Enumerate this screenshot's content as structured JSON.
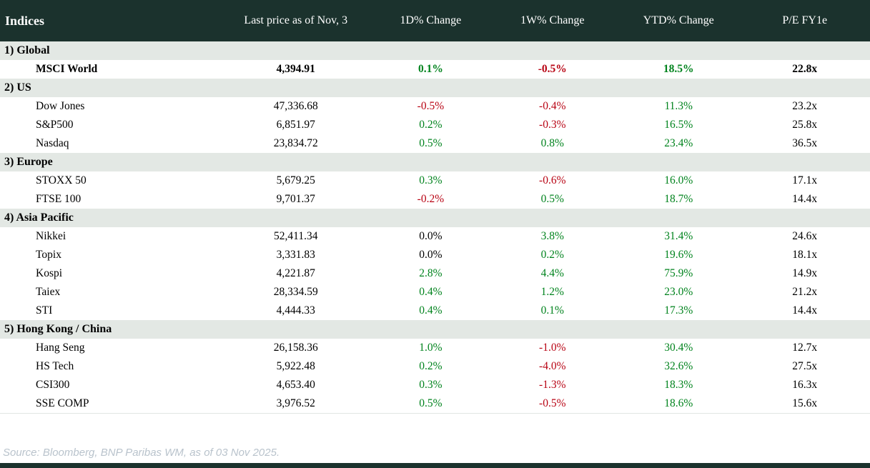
{
  "chart_data": {
    "type": "table",
    "title": "Indices",
    "columns": [
      "Last price as of Nov, 3",
      "1D% Change",
      "1W% Change",
      "YTD% Change",
      "P/E FY1e"
    ],
    "sections": [
      {
        "label": "1) Global",
        "rows": [
          {
            "name": "MSCI World",
            "last_price": "4,394.91",
            "chg_1d": "0.1%",
            "chg_1w": "-0.5%",
            "chg_ytd": "18.5%",
            "pe_fy1e": "22.8x",
            "emphasis": true
          }
        ]
      },
      {
        "label": "2) US",
        "rows": [
          {
            "name": "Dow Jones",
            "last_price": "47,336.68",
            "chg_1d": "-0.5%",
            "chg_1w": "-0.4%",
            "chg_ytd": "11.3%",
            "pe_fy1e": "23.2x",
            "emphasis": false
          },
          {
            "name": "S&P500",
            "last_price": "6,851.97",
            "chg_1d": "0.2%",
            "chg_1w": "-0.3%",
            "chg_ytd": "16.5%",
            "pe_fy1e": "25.8x",
            "emphasis": false
          },
          {
            "name": "Nasdaq",
            "last_price": "23,834.72",
            "chg_1d": "0.5%",
            "chg_1w": "0.8%",
            "chg_ytd": "23.4%",
            "pe_fy1e": "36.5x",
            "emphasis": false
          }
        ]
      },
      {
        "label": "3) Europe",
        "rows": [
          {
            "name": "STOXX 50",
            "last_price": "5,679.25",
            "chg_1d": "0.3%",
            "chg_1w": "-0.6%",
            "chg_ytd": "16.0%",
            "pe_fy1e": "17.1x",
            "emphasis": false
          },
          {
            "name": "FTSE 100",
            "last_price": "9,701.37",
            "chg_1d": "-0.2%",
            "chg_1w": "0.5%",
            "chg_ytd": "18.7%",
            "pe_fy1e": "14.4x",
            "emphasis": false
          }
        ]
      },
      {
        "label": "4) Asia Pacific",
        "rows": [
          {
            "name": "Nikkei",
            "last_price": "52,411.34",
            "chg_1d": "0.0%",
            "chg_1w": "3.8%",
            "chg_ytd": "31.4%",
            "pe_fy1e": "24.6x",
            "emphasis": false
          },
          {
            "name": "Topix",
            "last_price": "3,331.83",
            "chg_1d": "0.0%",
            "chg_1w": "0.2%",
            "chg_ytd": "19.6%",
            "pe_fy1e": "18.1x",
            "emphasis": false
          },
          {
            "name": "Kospi",
            "last_price": "4,221.87",
            "chg_1d": "2.8%",
            "chg_1w": "4.4%",
            "chg_ytd": "75.9%",
            "pe_fy1e": "14.9x",
            "emphasis": false
          },
          {
            "name": "Taiex",
            "last_price": "28,334.59",
            "chg_1d": "0.4%",
            "chg_1w": "1.2%",
            "chg_ytd": "23.0%",
            "pe_fy1e": "21.2x",
            "emphasis": false
          },
          {
            "name": "STI",
            "last_price": "4,444.33",
            "chg_1d": "0.4%",
            "chg_1w": "0.1%",
            "chg_ytd": "17.3%",
            "pe_fy1e": "14.4x",
            "emphasis": false
          }
        ]
      },
      {
        "label": "5) Hong Kong / China",
        "rows": [
          {
            "name": "Hang Seng",
            "last_price": "26,158.36",
            "chg_1d": "1.0%",
            "chg_1w": "-1.0%",
            "chg_ytd": "30.4%",
            "pe_fy1e": "12.7x",
            "emphasis": false
          },
          {
            "name": "HS Tech",
            "last_price": "5,922.48",
            "chg_1d": "0.2%",
            "chg_1w": "-4.0%",
            "chg_ytd": "32.6%",
            "pe_fy1e": "27.5x",
            "emphasis": false
          },
          {
            "name": "CSI300",
            "last_price": "4,653.40",
            "chg_1d": "0.3%",
            "chg_1w": "-1.3%",
            "chg_ytd": "18.3%",
            "pe_fy1e": "16.3x",
            "emphasis": false
          },
          {
            "name": "SSE COMP",
            "last_price": "3,976.52",
            "chg_1d": "0.5%",
            "chg_1w": "-0.5%",
            "chg_ytd": "18.6%",
            "pe_fy1e": "15.6x",
            "emphasis": false
          }
        ]
      }
    ]
  },
  "footer": {
    "source": "Source: Bloomberg, BNP Paribas WM, as of 03 Nov 2025."
  },
  "colors": {
    "header_bg": "#1B322D",
    "section_row_bg": "#E3E8E4",
    "positive": "#00831D",
    "negative": "#B80313",
    "neutral": "#000000",
    "source_text": "#B9C3CC",
    "bottom_bar": "#1B322D"
  }
}
